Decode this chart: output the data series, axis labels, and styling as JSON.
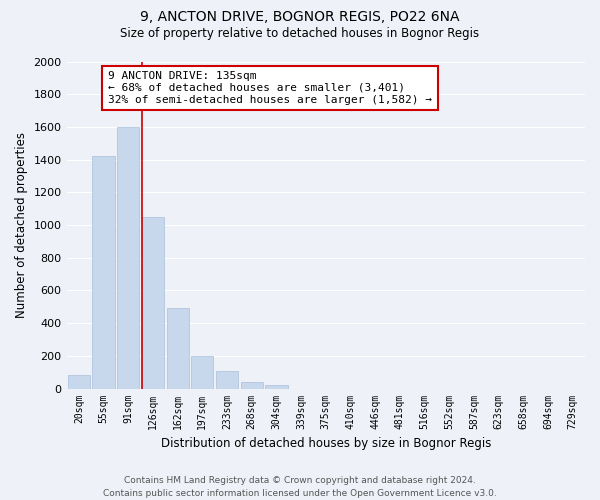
{
  "title": "9, ANCTON DRIVE, BOGNOR REGIS, PO22 6NA",
  "subtitle": "Size of property relative to detached houses in Bognor Regis",
  "xlabel": "Distribution of detached houses by size in Bognor Regis",
  "ylabel": "Number of detached properties",
  "bar_labels": [
    "20sqm",
    "55sqm",
    "91sqm",
    "126sqm",
    "162sqm",
    "197sqm",
    "233sqm",
    "268sqm",
    "304sqm",
    "339sqm",
    "375sqm",
    "410sqm",
    "446sqm",
    "481sqm",
    "516sqm",
    "552sqm",
    "587sqm",
    "623sqm",
    "658sqm",
    "694sqm",
    "729sqm"
  ],
  "bar_values": [
    85,
    1420,
    1600,
    1050,
    490,
    200,
    110,
    40,
    20,
    0,
    0,
    0,
    0,
    0,
    0,
    0,
    0,
    0,
    0,
    0,
    0
  ],
  "bar_color": "#c8d8ec",
  "bar_edge_color": "#a8c0dc",
  "annotation_title": "9 ANCTON DRIVE: 135sqm",
  "annotation_line1": "← 68% of detached houses are smaller (3,401)",
  "annotation_line2": "32% of semi-detached houses are larger (1,582) →",
  "annotation_box_color": "#ffffff",
  "annotation_box_edge": "#cc0000",
  "vline_color": "#cc0000",
  "ylim": [
    0,
    2000
  ],
  "yticks": [
    0,
    200,
    400,
    600,
    800,
    1000,
    1200,
    1400,
    1600,
    1800,
    2000
  ],
  "background_color": "#eef2f8",
  "grid_color": "#ffffff",
  "footer_line1": "Contains HM Land Registry data © Crown copyright and database right 2024.",
  "footer_line2": "Contains public sector information licensed under the Open Government Licence v3.0."
}
